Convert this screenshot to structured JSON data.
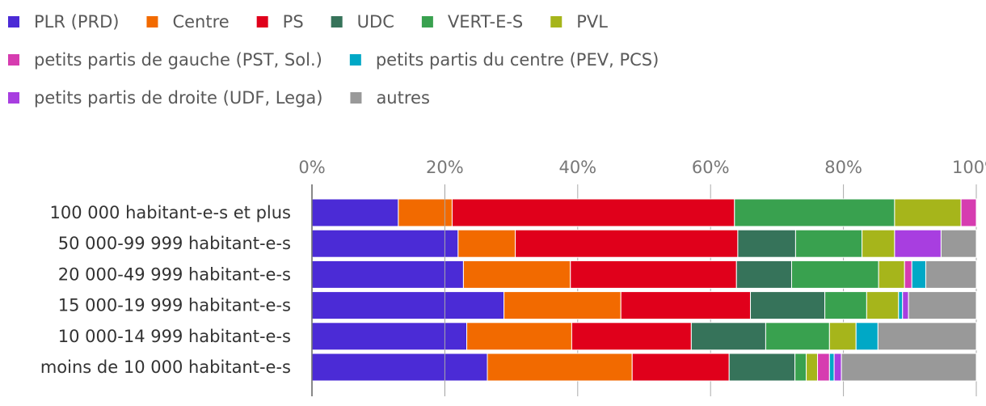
{
  "chart_data": {
    "type": "bar",
    "orientation": "horizontal",
    "stacked": true,
    "legend_position": "top",
    "grid": false,
    "xlim": [
      0,
      100
    ],
    "x_ticks": [
      "0%",
      "20%",
      "40%",
      "60%",
      "80%",
      "100%"
    ],
    "categories": [
      "100 000 habitant-e-s et plus",
      "50 000-99 999 habitant-e-s",
      "20 000-49 999 habitant-e-s",
      "15 000-19 999 habitant-e-s",
      "10 000-14 999 habitant-e-s",
      "moins de 10 000 habitant-e-s"
    ],
    "series": [
      {
        "name": "PLR (PRD)",
        "color": "#4b2bd6",
        "values": [
          13.0,
          22.0,
          22.8,
          28.9,
          23.3,
          26.4
        ]
      },
      {
        "name": "Centre",
        "color": "#f26a00",
        "values": [
          8.1,
          8.6,
          16.1,
          17.6,
          15.8,
          21.8
        ]
      },
      {
        "name": "PS",
        "color": "#e0001b",
        "values": [
          42.5,
          33.5,
          25.0,
          19.5,
          18.0,
          14.6
        ]
      },
      {
        "name": "UDC",
        "color": "#36735a",
        "values": [
          0.0,
          8.7,
          8.3,
          11.2,
          11.2,
          9.9
        ]
      },
      {
        "name": "VERT-E-S",
        "color": "#39a14f",
        "values": [
          24.1,
          10.0,
          13.1,
          6.3,
          9.6,
          1.7
        ]
      },
      {
        "name": "PVL",
        "color": "#a6b51b",
        "values": [
          10.0,
          4.9,
          3.9,
          4.8,
          4.0,
          1.7
        ]
      },
      {
        "name": "petits partis de gauche (PST, Sol.)",
        "color": "#d63cb0",
        "values": [
          2.3,
          0.0,
          1.1,
          0.0,
          0.0,
          1.8
        ]
      },
      {
        "name": "petits partis du centre (PEV, PCS)",
        "color": "#00a8c6",
        "values": [
          0.0,
          0.0,
          2.1,
          0.6,
          3.3,
          0.7
        ]
      },
      {
        "name": "petits partis de droite (UDF, Lega)",
        "color": "#a83ee0",
        "values": [
          0.0,
          7.0,
          0.0,
          0.9,
          0.0,
          1.1
        ]
      },
      {
        "name": "autres",
        "color": "#999999",
        "values": [
          0.0,
          5.3,
          7.6,
          10.2,
          14.8,
          20.3
        ]
      }
    ]
  }
}
